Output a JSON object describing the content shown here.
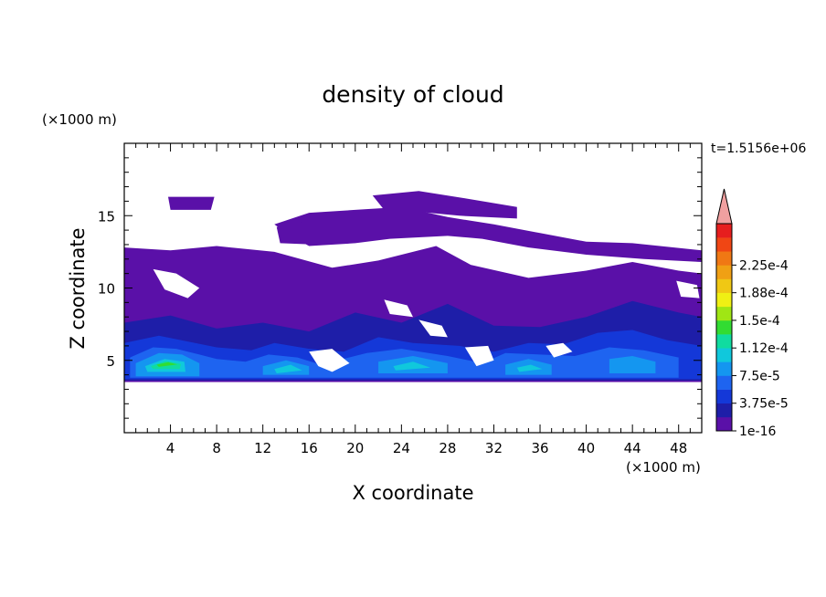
{
  "chart_data": {
    "type": "heatmap",
    "title": "density of cloud",
    "xlabel": "X coordinate",
    "ylabel": "Z coordinate",
    "x_unit": "(×1000 m)",
    "y_unit": "(×1000 m)",
    "time_label": "t=1.5156e+06",
    "xlim": [
      0,
      50
    ],
    "ylim": [
      0,
      20
    ],
    "x_ticks": [
      4,
      8,
      12,
      16,
      20,
      24,
      28,
      32,
      36,
      40,
      44,
      48
    ],
    "y_ticks": [
      5,
      10,
      15
    ],
    "colorbar": {
      "levels": [
        "1e-16",
        "3.75e-5",
        "7.5e-5",
        "1.12e-4",
        "1.5e-4",
        "1.88e-4",
        "2.25e-4"
      ],
      "colors": [
        "#5a10a8",
        "#1e1ea8",
        "#1438d8",
        "#1e64f0",
        "#1496f0",
        "#10c8dc",
        "#10dca0",
        "#32dc32",
        "#a0e614",
        "#f0f014",
        "#f0c814",
        "#f0a014",
        "#f07814",
        "#f04614",
        "#e61e1e"
      ],
      "overflow_color": "#f0a0a0"
    },
    "regions": [
      {
        "level": 0,
        "polygon": [
          [
            0,
            12.8
          ],
          [
            4,
            12.6
          ],
          [
            8,
            12.9
          ],
          [
            13,
            12.5
          ],
          [
            18,
            11.4
          ],
          [
            22,
            11.9
          ],
          [
            27,
            12.9
          ],
          [
            30,
            11.6
          ],
          [
            35,
            10.7
          ],
          [
            40,
            11.2
          ],
          [
            44,
            11.8
          ],
          [
            48,
            11.2
          ],
          [
            50,
            11.0
          ],
          [
            50,
            3.5
          ],
          [
            0,
            3.5
          ]
        ]
      },
      {
        "level": 0,
        "polygon": [
          [
            16,
            15.2
          ],
          [
            20,
            15.4
          ],
          [
            24,
            15.6
          ],
          [
            28,
            14.9
          ],
          [
            32,
            14.4
          ],
          [
            36,
            13.8
          ],
          [
            40,
            13.2
          ],
          [
            44,
            13.1
          ],
          [
            50,
            12.6
          ],
          [
            50,
            11.8
          ],
          [
            45,
            12.0
          ],
          [
            40,
            12.3
          ],
          [
            35,
            12.8
          ],
          [
            31,
            13.4
          ],
          [
            28,
            13.6
          ],
          [
            23,
            13.4
          ],
          [
            20,
            13.1
          ],
          [
            16,
            12.9
          ],
          [
            14,
            13.8
          ],
          [
            13,
            14.4
          ]
        ]
      },
      {
        "level": 0,
        "polygon": [
          [
            21.5,
            16.4
          ],
          [
            25.5,
            16.7
          ],
          [
            29.5,
            16.2
          ],
          [
            34,
            15.6
          ],
          [
            34,
            14.8
          ],
          [
            29,
            15.0
          ],
          [
            25,
            15.3
          ],
          [
            22.5,
            15.4
          ]
        ]
      },
      {
        "level": 0,
        "polygon": [
          [
            3.8,
            16.3
          ],
          [
            7.8,
            16.3
          ],
          [
            7.5,
            15.4
          ],
          [
            4,
            15.4
          ]
        ]
      },
      {
        "level": 0,
        "polygon": [
          [
            13.2,
            14.2
          ],
          [
            14.5,
            14.6
          ],
          [
            17.3,
            14.4
          ],
          [
            16.5,
            13.0
          ],
          [
            13.5,
            13.1
          ]
        ]
      },
      {
        "level": 1,
        "polygon": [
          [
            0,
            7.6
          ],
          [
            4,
            8.1
          ],
          [
            8,
            7.2
          ],
          [
            12,
            7.6
          ],
          [
            16,
            7.0
          ],
          [
            20,
            8.3
          ],
          [
            24,
            7.6
          ],
          [
            28,
            8.9
          ],
          [
            32,
            7.4
          ],
          [
            36,
            7.3
          ],
          [
            40,
            8.0
          ],
          [
            44,
            9.1
          ],
          [
            48,
            8.3
          ],
          [
            50,
            8.0
          ],
          [
            50,
            3.6
          ],
          [
            0,
            3.6
          ]
        ]
      },
      {
        "level": 2,
        "polygon": [
          [
            0,
            6.2
          ],
          [
            3,
            6.7
          ],
          [
            5.5,
            6.3
          ],
          [
            8,
            5.9
          ],
          [
            11,
            5.7
          ],
          [
            13,
            6.2
          ],
          [
            16,
            5.8
          ],
          [
            19,
            5.6
          ],
          [
            22,
            6.6
          ],
          [
            25,
            6.2
          ],
          [
            29,
            6.0
          ],
          [
            32,
            5.6
          ],
          [
            35,
            6.2
          ],
          [
            38,
            6.1
          ],
          [
            41,
            6.9
          ],
          [
            44,
            7.1
          ],
          [
            47,
            6.4
          ],
          [
            50,
            6.0
          ],
          [
            50,
            3.7
          ],
          [
            0,
            3.7
          ]
        ]
      },
      {
        "level": 3,
        "polygon": [
          [
            0.5,
            5.2
          ],
          [
            2.5,
            5.9
          ],
          [
            4.5,
            5.8
          ],
          [
            6.5,
            5.4
          ],
          [
            8,
            5.1
          ],
          [
            10.5,
            4.9
          ],
          [
            12.5,
            5.4
          ],
          [
            15,
            5.2
          ],
          [
            17,
            4.7
          ],
          [
            21,
            5.5
          ],
          [
            24,
            5.8
          ],
          [
            28,
            5.3
          ],
          [
            31,
            4.8
          ],
          [
            33,
            5.5
          ],
          [
            36,
            5.4
          ],
          [
            39,
            5.3
          ],
          [
            42,
            5.9
          ],
          [
            45,
            5.7
          ],
          [
            48,
            5.2
          ],
          [
            48,
            3.8
          ],
          [
            0.5,
            3.8
          ]
        ]
      },
      {
        "level": 4,
        "polygon": [
          [
            1,
            4.8
          ],
          [
            3,
            5.5
          ],
          [
            5,
            5.4
          ],
          [
            6.5,
            4.8
          ],
          [
            6.5,
            3.9
          ],
          [
            1,
            3.9
          ]
        ]
      },
      {
        "level": 4,
        "polygon": [
          [
            12,
            4.6
          ],
          [
            14,
            5.0
          ],
          [
            16,
            4.6
          ],
          [
            16,
            4.0
          ],
          [
            12,
            4.0
          ]
        ]
      },
      {
        "level": 4,
        "polygon": [
          [
            22,
            4.9
          ],
          [
            25,
            5.3
          ],
          [
            28,
            4.8
          ],
          [
            28,
            4.1
          ],
          [
            22,
            4.1
          ]
        ]
      },
      {
        "level": 4,
        "polygon": [
          [
            33,
            4.7
          ],
          [
            35,
            5.1
          ],
          [
            37,
            4.7
          ],
          [
            37,
            4.0
          ],
          [
            33,
            4.0
          ]
        ]
      },
      {
        "level": 4,
        "polygon": [
          [
            42,
            5.1
          ],
          [
            44,
            5.3
          ],
          [
            46,
            4.9
          ],
          [
            46,
            4.1
          ],
          [
            42,
            4.1
          ]
        ]
      },
      {
        "level": 5,
        "polygon": [
          [
            1.8,
            4.6
          ],
          [
            3.5,
            5.1
          ],
          [
            5.2,
            4.9
          ],
          [
            5.3,
            4.2
          ],
          [
            2,
            4.2
          ]
        ]
      },
      {
        "level": 5,
        "polygon": [
          [
            13,
            4.4
          ],
          [
            14.4,
            4.7
          ],
          [
            15.4,
            4.3
          ],
          [
            13.2,
            4.1
          ]
        ]
      },
      {
        "level": 5,
        "polygon": [
          [
            23.3,
            4.6
          ],
          [
            25,
            4.9
          ],
          [
            26.5,
            4.5
          ],
          [
            23.5,
            4.3
          ]
        ]
      },
      {
        "level": 5,
        "polygon": [
          [
            34,
            4.5
          ],
          [
            35.2,
            4.7
          ],
          [
            36.2,
            4.4
          ],
          [
            34.2,
            4.2
          ]
        ]
      },
      {
        "level": 6,
        "polygon": [
          [
            2.3,
            4.6
          ],
          [
            3.6,
            4.95
          ],
          [
            4.9,
            4.75
          ],
          [
            4.8,
            4.4
          ],
          [
            2.5,
            4.4
          ]
        ]
      },
      {
        "level": 7,
        "polygon": [
          [
            2.8,
            4.7
          ],
          [
            3.8,
            4.88
          ],
          [
            4.6,
            4.72
          ],
          [
            3.0,
            4.55
          ]
        ]
      }
    ],
    "gaps": [
      [
        [
          2.5,
          11.3
        ],
        [
          4.5,
          11.0
        ],
        [
          6.5,
          10.0
        ],
        [
          5.5,
          9.3
        ],
        [
          3.5,
          9.9
        ]
      ],
      [
        [
          22.5,
          9.2
        ],
        [
          24.5,
          8.8
        ],
        [
          25.0,
          8.0
        ],
        [
          23.0,
          8.2
        ]
      ],
      [
        [
          25.5,
          7.8
        ],
        [
          27.5,
          7.4
        ],
        [
          28.0,
          6.6
        ],
        [
          26.5,
          6.7
        ]
      ],
      [
        [
          16.0,
          5.6
        ],
        [
          18.0,
          5.8
        ],
        [
          19.5,
          4.8
        ],
        [
          18.0,
          4.2
        ],
        [
          16.8,
          4.6
        ]
      ],
      [
        [
          29.5,
          5.9
        ],
        [
          31.5,
          6.0
        ],
        [
          32.0,
          5.0
        ],
        [
          30.5,
          4.6
        ]
      ],
      [
        [
          36.5,
          6.0
        ],
        [
          38.0,
          6.2
        ],
        [
          38.8,
          5.6
        ],
        [
          37.2,
          5.2
        ]
      ],
      [
        [
          47.8,
          10.5
        ],
        [
          49.6,
          10.2
        ],
        [
          49.8,
          9.3
        ],
        [
          48.2,
          9.4
        ]
      ]
    ]
  }
}
